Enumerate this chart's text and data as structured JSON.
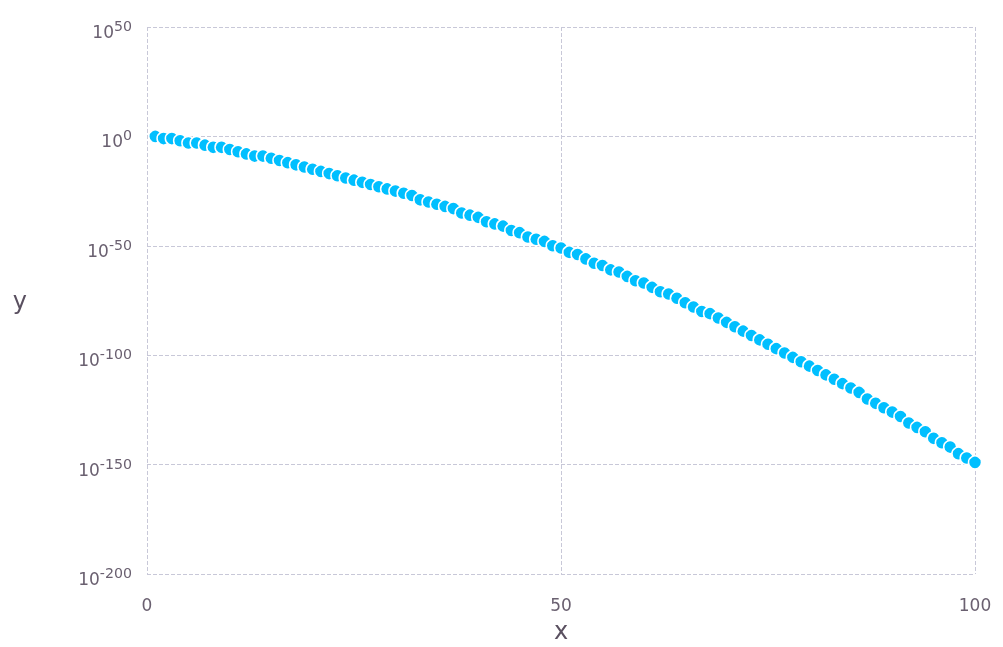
{
  "chart_data": {
    "type": "scatter",
    "xlabel": "x",
    "ylabel": "y",
    "log": "y",
    "grid": true,
    "marker": "circle",
    "xlim": [
      0,
      100
    ],
    "xticks": [
      0,
      50,
      100
    ],
    "ylim": [
      1e-200,
      1e+50
    ],
    "yticks": [
      {
        "value": 1e-200,
        "label": "10$^{-200}$"
      },
      {
        "value": 1e-150,
        "label": "10$^{-150}$"
      },
      {
        "value": 1e-100,
        "label": "10$^{-100}$"
      },
      {
        "value": 1e-50,
        "label": "10$^{-50}$"
      },
      {
        "value": 1,
        "label": "10$^{0}$"
      },
      {
        "value": 1e+50,
        "label": "10$^{50}$"
      }
    ],
    "series": [
      {
        "color": "#00bfff",
        "x": [
          1,
          2,
          3,
          4,
          5,
          6,
          7,
          8,
          9,
          10,
          11,
          12,
          13,
          14,
          15,
          16,
          17,
          18,
          19,
          20,
          21,
          22,
          23,
          24,
          25,
          26,
          27,
          28,
          29,
          30,
          31,
          32,
          33,
          34,
          35,
          36,
          37,
          38,
          39,
          40,
          41,
          42,
          43,
          44,
          45,
          46,
          47,
          48,
          49,
          50,
          51,
          52,
          53,
          54,
          55,
          56,
          57,
          58,
          59,
          60,
          61,
          62,
          63,
          64,
          65,
          66,
          67,
          68,
          69,
          70,
          71,
          72,
          73,
          74,
          75,
          76,
          77,
          78,
          79,
          80,
          81,
          82,
          83,
          84,
          85,
          86,
          87,
          88,
          89,
          90,
          91,
          92,
          93,
          94,
          95,
          96,
          97,
          98,
          99,
          100
        ],
        "values": [
          1,
          0.1,
          0.1,
          0.01,
          0.001,
          0.001,
          0.0001,
          1e-05,
          1e-05,
          1e-06,
          1e-07,
          1e-08,
          1e-09,
          1e-09,
          1e-10,
          1e-11,
          1e-12,
          1e-13,
          1e-14,
          1e-15,
          1e-16,
          1e-17,
          1e-18,
          1e-19,
          1e-20,
          1e-21,
          1e-22,
          1e-23,
          1e-24,
          1e-25,
          1e-26,
          1e-27,
          1e-29,
          1e-30,
          1e-31,
          1e-32,
          1e-33,
          1e-35,
          1e-36,
          1e-37,
          1e-39,
          1e-40,
          1e-41,
          1e-43,
          1e-44,
          1e-46,
          1e-47,
          1e-48,
          1e-50,
          1e-51,
          1e-53,
          1e-54,
          1e-56,
          1e-58,
          1e-59,
          1e-61,
          1e-62,
          1e-64,
          1e-66,
          1e-67,
          1e-69,
          1e-71,
          1e-72,
          1e-74,
          1e-76,
          1e-78,
          1e-80,
          1e-81,
          1e-83,
          1e-85,
          1e-87,
          1e-89,
          1e-91,
          1e-93,
          1e-95,
          1e-97,
          1e-99,
          1e-101,
          1e-103,
          1e-105,
          1e-107,
          1e-109,
          1e-111,
          1e-113,
          1e-115,
          1e-117,
          1e-120,
          1e-122,
          1e-124,
          1e-126,
          1e-128,
          1e-131,
          1e-133,
          1e-135,
          1e-138,
          1e-140,
          1e-142,
          1e-145,
          1e-147,
          1e-149
        ]
      }
    ]
  }
}
